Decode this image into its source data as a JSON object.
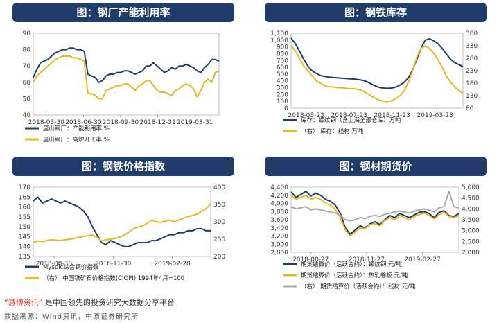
{
  "colors": {
    "navy": "#1f3c6b",
    "gold": "#e6b820",
    "gray": "#a8a8a8",
    "banner": "#1f3c6b"
  },
  "footer": {
    "brand": "“慧博资讯”",
    "tagline": "是中国领先的投资研究大数据分享平台",
    "source": "数据来源：Wind资讯，中原证券研究所"
  },
  "chart_data": [
    {
      "type": "line",
      "title": "图：钢厂产能利用率",
      "xticks": [
        "2018-03-30",
        "2018-06-30",
        "2018-09-30",
        "2018-12-31",
        "2019-03-31"
      ],
      "ylim": [
        40,
        90
      ],
      "yticks": [
        40,
        50,
        60,
        70,
        80,
        90
      ],
      "series": [
        {
          "name": "唐山钢厂：产能利用率  %",
          "color": "#1f3c6b",
          "axis": "left",
          "values": [
            63,
            68,
            72,
            73,
            74,
            76,
            78,
            79,
            80,
            80,
            81,
            81,
            80,
            80,
            79,
            65,
            64,
            63,
            60,
            61,
            64,
            65,
            65,
            66,
            66,
            67,
            67,
            66,
            65,
            66,
            67,
            70,
            70,
            72,
            70,
            68,
            66,
            67,
            69,
            68,
            70,
            70,
            71,
            70,
            69,
            67,
            66,
            69,
            71,
            74,
            74,
            73
          ]
        },
        {
          "name": "唐山钢厂：高炉开工率  %",
          "color": "#e6b820",
          "axis": "left",
          "values": [
            60,
            64,
            66,
            68,
            70,
            72,
            74,
            75,
            76,
            76,
            76,
            75,
            75,
            74,
            73,
            53,
            53,
            52,
            50,
            50,
            55,
            56,
            57,
            58,
            58,
            59,
            59,
            57,
            55,
            58,
            59,
            61,
            61,
            58,
            55,
            54,
            54,
            53,
            52,
            55,
            56,
            58,
            59,
            58,
            56,
            51,
            55,
            60,
            62,
            60,
            66,
            67
          ]
        }
      ]
    },
    {
      "type": "line",
      "title": "图：钢铁库存",
      "xticks": [
        "2018-03-23",
        "2018-07-23",
        "2018-11-23",
        "2019-03-23"
      ],
      "ylim": [
        0,
        1100
      ],
      "yticks": [
        0,
        100,
        200,
        300,
        400,
        500,
        600,
        700,
        800,
        900,
        1000,
        1100
      ],
      "y2lim": [
        80,
        380
      ],
      "y2ticks": [
        80,
        130,
        180,
        230,
        280,
        330,
        380
      ],
      "series": [
        {
          "name": "库存：螺纹钢（含上海全部仓库）万吨",
          "color": "#1f3c6b",
          "axis": "left",
          "values": [
            1030,
            950,
            840,
            720,
            620,
            550,
            510,
            480,
            465,
            455,
            450,
            445,
            440,
            435,
            432,
            428,
            420,
            410,
            390,
            360,
            330,
            305,
            295,
            290,
            295,
            310,
            340,
            380,
            450,
            560,
            720,
            880,
            1000,
            1020,
            990,
            950,
            880,
            800,
            720,
            670,
            640,
            610
          ]
        },
        {
          "name": "（右）  库存：线材  万吨",
          "color": "#e6b820",
          "axis": "right",
          "values": [
            330,
            310,
            280,
            250,
            230,
            210,
            190,
            180,
            170,
            165,
            165,
            162,
            162,
            160,
            158,
            158,
            155,
            150,
            140,
            130,
            120,
            112,
            108,
            106,
            110,
            118,
            130,
            150,
            185,
            230,
            285,
            320,
            330,
            320,
            300,
            275,
            245,
            210,
            185,
            165,
            150,
            140
          ]
        }
      ]
    },
    {
      "type": "line",
      "title": "图：钢铁价格指数",
      "xticks": [
        "2018-08-30",
        "2018-11-30",
        "2019-02-28"
      ],
      "ylim": [
        135,
        170
      ],
      "yticks": [
        135,
        140,
        145,
        150,
        155,
        160,
        165,
        170
      ],
      "y2lim": [
        200,
        400
      ],
      "y2ticks": [
        200,
        250,
        300,
        350,
        400
      ],
      "series": [
        {
          "name": "Myspic综合钢价指数",
          "color": "#1f3c6b",
          "axis": "left",
          "values": [
            163,
            165,
            162,
            163,
            164,
            163,
            162,
            163,
            162,
            161,
            160,
            158,
            155,
            150,
            146,
            142,
            141,
            143,
            142,
            141,
            140,
            140,
            141,
            142,
            142,
            142,
            143,
            143,
            144,
            145,
            146,
            146,
            147,
            147,
            148,
            148,
            149,
            149,
            148,
            148
          ]
        },
        {
          "name": "（右）  中国铁矿石价格指数(CIOPI)  1994年4月=100",
          "color": "#e6b820",
          "axis": "right",
          "values": [
            240,
            245,
            243,
            246,
            248,
            247,
            246,
            248,
            250,
            252,
            255,
            258,
            260,
            262,
            255,
            245,
            248,
            250,
            252,
            256,
            262,
            270,
            280,
            285,
            288,
            295,
            305,
            300,
            298,
            302,
            305,
            300,
            305,
            310,
            315,
            318,
            322,
            330,
            338,
            352
          ]
        }
      ]
    },
    {
      "type": "line",
      "title": "图：钢材期货价",
      "xticks": [
        "2018-08-27",
        "2018-11-27",
        "2019-02-27"
      ],
      "ylim": [
        2800,
        4400
      ],
      "yticks": [
        2800,
        3000,
        3200,
        3400,
        3600,
        3800,
        4000,
        4200,
        4400
      ],
      "y2lim": [
        2000,
        5000
      ],
      "y2ticks": [
        2000,
        2500,
        3000,
        3500,
        4000,
        4500,
        5000
      ],
      "series": [
        {
          "name": "期货结算价（活跃合约）：螺纹钢  元/吨",
          "color": "#1f3c6b",
          "axis": "left",
          "values": [
            4280,
            4150,
            4220,
            4300,
            4180,
            4250,
            4200,
            4100,
            4050,
            3950,
            3750,
            3400,
            3250,
            3350,
            3450,
            3400,
            3500,
            3550,
            3480,
            3600,
            3700,
            3650,
            3750,
            3700,
            3650,
            3720,
            3780,
            3800,
            3750,
            3650,
            3780,
            3820,
            3700,
            3680,
            3750
          ]
        },
        {
          "name": "期货结算价（活跃合约）：热轧卷板  元/吨",
          "color": "#e6b820",
          "axis": "left",
          "values": [
            4200,
            4100,
            4150,
            4200,
            4100,
            4150,
            4100,
            4000,
            3950,
            3850,
            3650,
            3350,
            3200,
            3300,
            3400,
            3380,
            3480,
            3500,
            3450,
            3580,
            3650,
            3600,
            3700,
            3650,
            3600,
            3680,
            3730,
            3760,
            3700,
            3620,
            3720,
            3780,
            3680,
            3650,
            3700
          ]
        },
        {
          "name": "（右）  期货结算价（活跃合约）：线材  元/吨",
          "color": "#a8a8a8",
          "axis": "right",
          "values": [
            4100,
            4000,
            4050,
            4100,
            3950,
            4000,
            3950,
            3900,
            3850,
            3800,
            3700,
            3500,
            3450,
            3500,
            3600,
            3550,
            3650,
            3700,
            3650,
            3750,
            3800,
            3850,
            3900,
            3850,
            3800,
            3900,
            3950,
            4000,
            3950,
            3850,
            4050,
            4100,
            4800,
            4100,
            4050
          ]
        }
      ]
    }
  ]
}
